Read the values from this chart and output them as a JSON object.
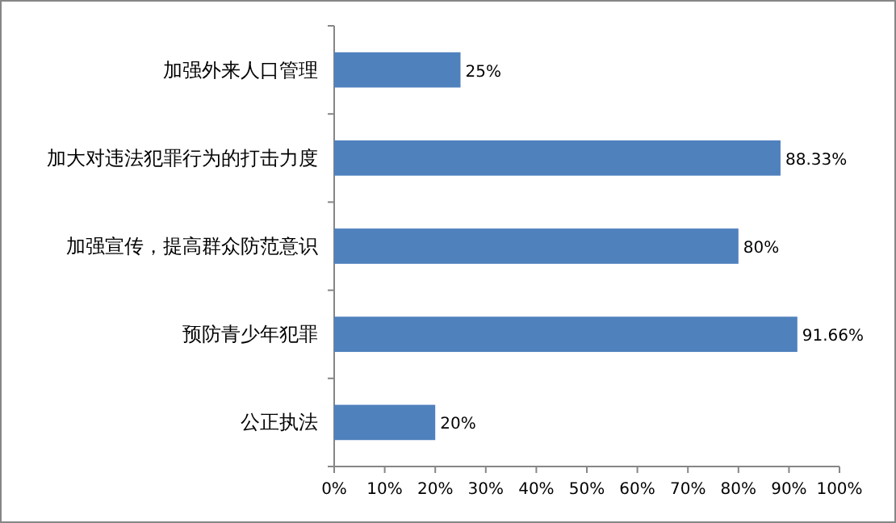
{
  "chart_data": {
    "type": "bar",
    "orientation": "horizontal",
    "categories": [
      "加强外来人口管理",
      "加大对违法犯罪行为的打击力度",
      "加强宣传，提高群众防范意识",
      "预防青少年犯罪",
      "公正执法"
    ],
    "values": [
      25,
      88.33,
      80,
      91.66,
      20
    ],
    "value_labels": [
      "25%",
      "88.33%",
      "80%",
      "91.66%",
      "20%"
    ],
    "color": "#4f81bd",
    "xlim": [
      0,
      100
    ],
    "xticks": [
      {
        "value": 0,
        "label": "0%"
      },
      {
        "value": 10,
        "label": "10%"
      },
      {
        "value": 20,
        "label": "20%"
      },
      {
        "value": 30,
        "label": "30%"
      },
      {
        "value": 40,
        "label": "40%"
      },
      {
        "value": 50,
        "label": "50%"
      },
      {
        "value": 60,
        "label": "60%"
      },
      {
        "value": 70,
        "label": "70%"
      },
      {
        "value": 80,
        "label": "80%"
      },
      {
        "value": 90,
        "label": "90%"
      },
      {
        "value": 100,
        "label": "100%"
      }
    ]
  }
}
